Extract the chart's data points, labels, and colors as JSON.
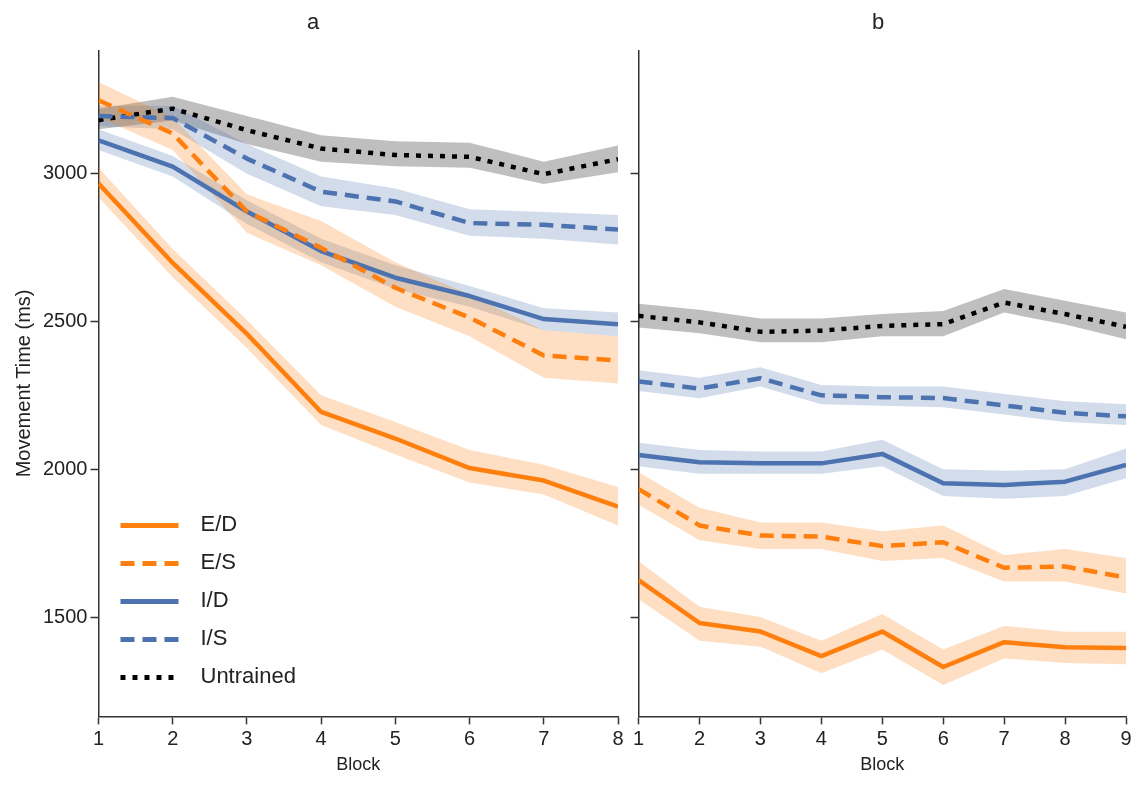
{
  "chart_data": [
    {
      "type": "line",
      "title": "a",
      "xlabel": "Block",
      "ylabel": "Movement Time (ms)",
      "x": [
        1,
        2,
        3,
        4,
        5,
        6,
        7,
        8
      ],
      "xlim": [
        1,
        8
      ],
      "xticks": [
        1,
        2,
        3,
        4,
        5,
        6,
        7,
        8
      ],
      "ylim": [
        1164,
        3417
      ],
      "yticks": [
        1500,
        2000,
        2500,
        3000
      ],
      "grid": false,
      "legend": "bottom left",
      "marker": "none",
      "series": [
        {
          "name": "E/D",
          "color": "#ff7f0e",
          "line_style": "solid",
          "values": [
            2967,
            2698,
            2458,
            2194,
            2104,
            2004,
            1962,
            1874
          ],
          "lower": [
            2920,
            2650,
            2410,
            2150,
            2050,
            1955,
            1915,
            1810
          ],
          "upper": [
            3020,
            2745,
            2505,
            2250,
            2160,
            2065,
            2015,
            1940
          ]
        },
        {
          "name": "E/S",
          "color": "#ff7f0e",
          "line_style": "dashed",
          "values": [
            3248,
            3136,
            2872,
            2749,
            2614,
            2513,
            2385,
            2368
          ],
          "lower": [
            3190,
            3080,
            2800,
            2690,
            2550,
            2450,
            2310,
            2290
          ],
          "upper": [
            3310,
            3190,
            2930,
            2840,
            2700,
            2590,
            2470,
            2450
          ]
        },
        {
          "name": "I/D",
          "color": "#4c72b0",
          "line_style": "solid",
          "values": [
            3113,
            3024,
            2872,
            2738,
            2648,
            2586,
            2508,
            2491
          ],
          "lower": [
            3080,
            2990,
            2830,
            2700,
            2610,
            2550,
            2470,
            2450
          ],
          "upper": [
            3150,
            3060,
            2910,
            2780,
            2690,
            2620,
            2545,
            2530
          ]
        },
        {
          "name": "I/S",
          "color": "#4c72b0",
          "line_style": "dashed",
          "values": [
            3195,
            3188,
            3051,
            2939,
            2906,
            2833,
            2827,
            2811
          ],
          "lower": [
            3160,
            3150,
            3000,
            2890,
            2860,
            2790,
            2780,
            2760
          ],
          "upper": [
            3230,
            3230,
            3100,
            2990,
            2950,
            2880,
            2870,
            2860
          ]
        },
        {
          "name": "Untrained",
          "color": "#000000",
          "line_style": "dotted",
          "values": [
            3181,
            3220,
            3147,
            3085,
            3063,
            3057,
            2998,
            3049
          ],
          "lower": [
            3150,
            3180,
            3100,
            3040,
            3025,
            3020,
            2965,
            3005
          ],
          "upper": [
            3220,
            3260,
            3195,
            3130,
            3110,
            3105,
            3040,
            3095
          ]
        }
      ]
    },
    {
      "type": "line",
      "title": "b",
      "xlabel": "Block",
      "x": [
        1,
        2,
        3,
        4,
        5,
        6,
        7,
        8,
        9
      ],
      "xlim": [
        1,
        9
      ],
      "xticks": [
        1,
        2,
        3,
        4,
        5,
        6,
        7,
        8,
        9
      ],
      "ylim": [
        1164,
        3417
      ],
      "yticks": [
        1500,
        2000,
        2500,
        3000
      ],
      "tick_labels": "x",
      "grid": false,
      "marker": "none",
      "series": [
        {
          "color": "#ff7f0e",
          "line_style": "solid",
          "values": [
            1625,
            1480,
            1451,
            1368,
            1451,
            1331,
            1415,
            1398,
            1395
          ],
          "lower": [
            1560,
            1420,
            1400,
            1310,
            1390,
            1270,
            1360,
            1345,
            1340
          ],
          "upper": [
            1690,
            1535,
            1500,
            1420,
            1510,
            1390,
            1470,
            1450,
            1450
          ]
        },
        {
          "color": "#ff7f0e",
          "line_style": "dashed",
          "values": [
            1933,
            1810,
            1776,
            1772,
            1740,
            1753,
            1667,
            1671,
            1634
          ],
          "lower": [
            1880,
            1760,
            1730,
            1730,
            1690,
            1700,
            1620,
            1620,
            1580
          ],
          "upper": [
            1990,
            1870,
            1820,
            1820,
            1790,
            1810,
            1710,
            1730,
            1700
          ]
        },
        {
          "color": "#4c72b0",
          "line_style": "solid",
          "values": [
            2048,
            2024,
            2020,
            2020,
            2052,
            1953,
            1947,
            1958,
            2015
          ],
          "lower": [
            2010,
            1985,
            1985,
            1985,
            2010,
            1910,
            1900,
            1910,
            1970
          ],
          "upper": [
            2090,
            2065,
            2060,
            2060,
            2100,
            2000,
            1995,
            2000,
            2070
          ]
        },
        {
          "color": "#4c72b0",
          "line_style": "dashed",
          "values": [
            2297,
            2273,
            2308,
            2250,
            2244,
            2241,
            2216,
            2191,
            2179
          ],
          "lower": [
            2265,
            2240,
            2280,
            2220,
            2215,
            2210,
            2185,
            2160,
            2150
          ],
          "upper": [
            2335,
            2310,
            2345,
            2285,
            2280,
            2280,
            2255,
            2230,
            2220
          ]
        },
        {
          "color": "#000000",
          "line_style": "dotted",
          "values": [
            2519,
            2497,
            2465,
            2469,
            2485,
            2491,
            2564,
            2525,
            2482
          ],
          "lower": [
            2480,
            2460,
            2430,
            2430,
            2450,
            2450,
            2530,
            2490,
            2440
          ],
          "upper": [
            2560,
            2540,
            2510,
            2510,
            2525,
            2535,
            2610,
            2570,
            2530
          ]
        }
      ]
    }
  ]
}
